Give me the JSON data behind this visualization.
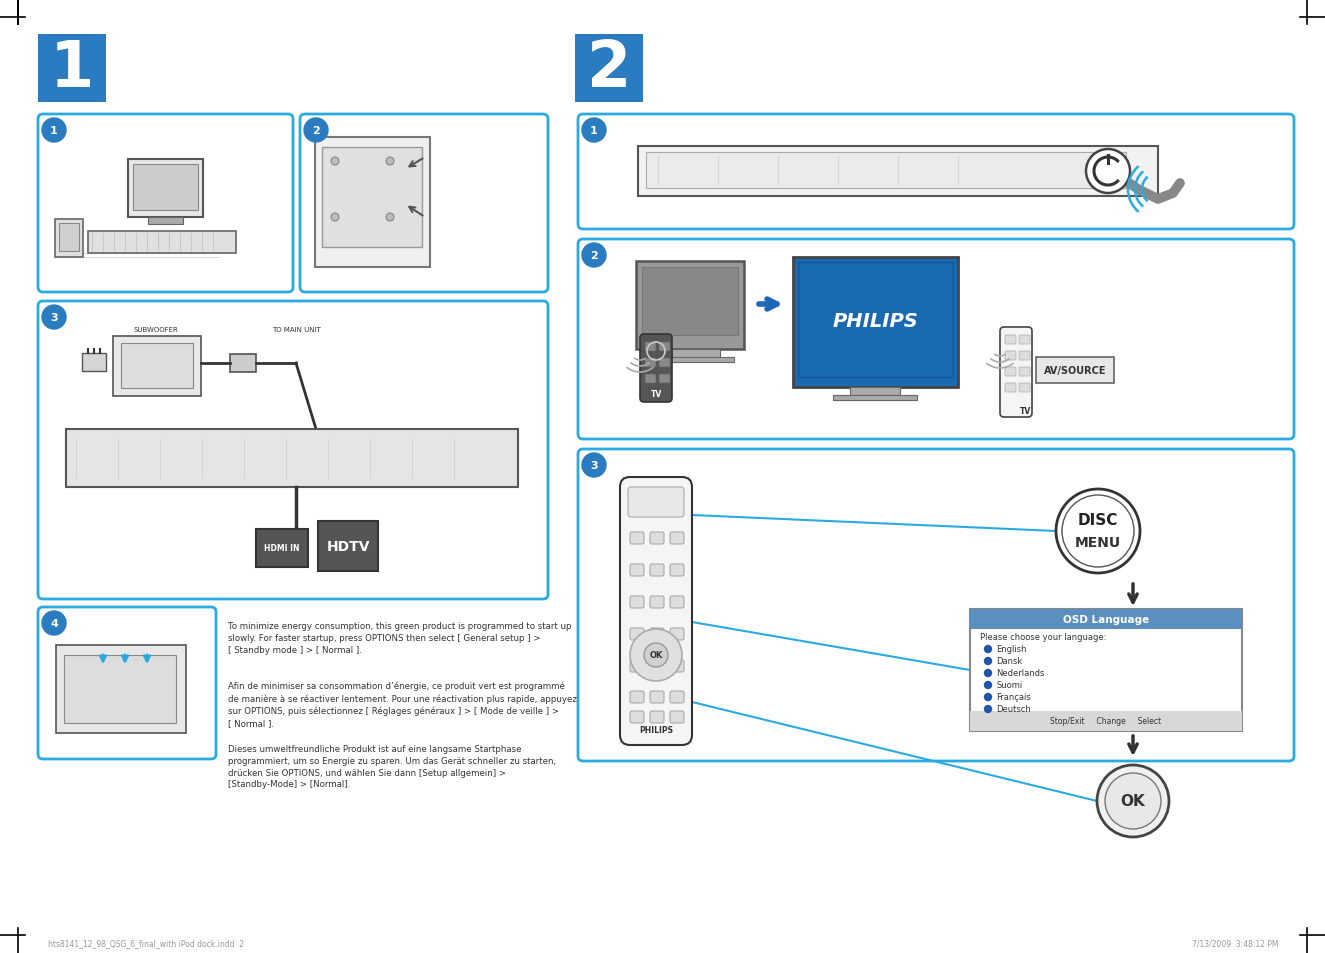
{
  "bg_color": "#ffffff",
  "blue_accent": "#29abe2",
  "step_bg_blue": "#2a7bbf",
  "text_color": "#333333",
  "philips_blue": "#0066a1",
  "tv_screen_blue": "#1a6ab0",
  "left_step_number": "1",
  "right_step_number": "2",
  "sub_step1_left": "1",
  "sub_step2_left": "2",
  "sub_step3_left": "3",
  "sub_step4_left": "4",
  "sub_step1_right": "1",
  "sub_step2_right": "2",
  "sub_step3_right": "3",
  "footer_left": "hts8141_12_98_QSG_6_final_with iPod dock.indd  2",
  "footer_right": "7/13/2009  3:48:12 PM",
  "para1_en": "To minimize energy consumption, this green product is programmed to start up\nslowly. For faster startup, press OPTIONS then select [ General setup ] >\n[ Standby mode ] > [ Normal ].",
  "para2_fr": "Afin de minimiser sa consommation d’énergie, ce produit vert est programmé\nde manière à se réactiver lentement. Pour une réactivation plus rapide, appuyez\nsur OPTIONS, puis sélectionnez [ Réglages généraux ] > [ Mode de veille ] >\n[ Normal ].",
  "para3_de": "Dieses umweltfreundliche Produkt ist auf eine langsame Startphase\nprogrammiert, um so Energie zu sparen. Um das Gerät schneller zu starten,\ndrücken Sie OPTIONS, und wählen Sie dann [Setup allgemein] >\n[Standby-Mode] > [Normal].",
  "osd_title": "OSD Language",
  "osd_prompt": "Please choose your language:",
  "osd_languages": [
    "English",
    "Dansk",
    "Nederlands",
    "Suomi",
    "Français",
    "Deutsch"
  ],
  "osd_footer": "Stop/Exit     Change     Select",
  "hdtv_label": "HDTV",
  "hdmi_in_label": "HDMI IN",
  "subwoofer_label": "SUBWOOFER",
  "to_main_unit_label": "TO MAIN UNIT",
  "disc_label": "DISC",
  "menu_label": "MENU",
  "avsource_label": "AV/SOURCE",
  "philips_label": "PHILIPS",
  "ok_label": "OK"
}
